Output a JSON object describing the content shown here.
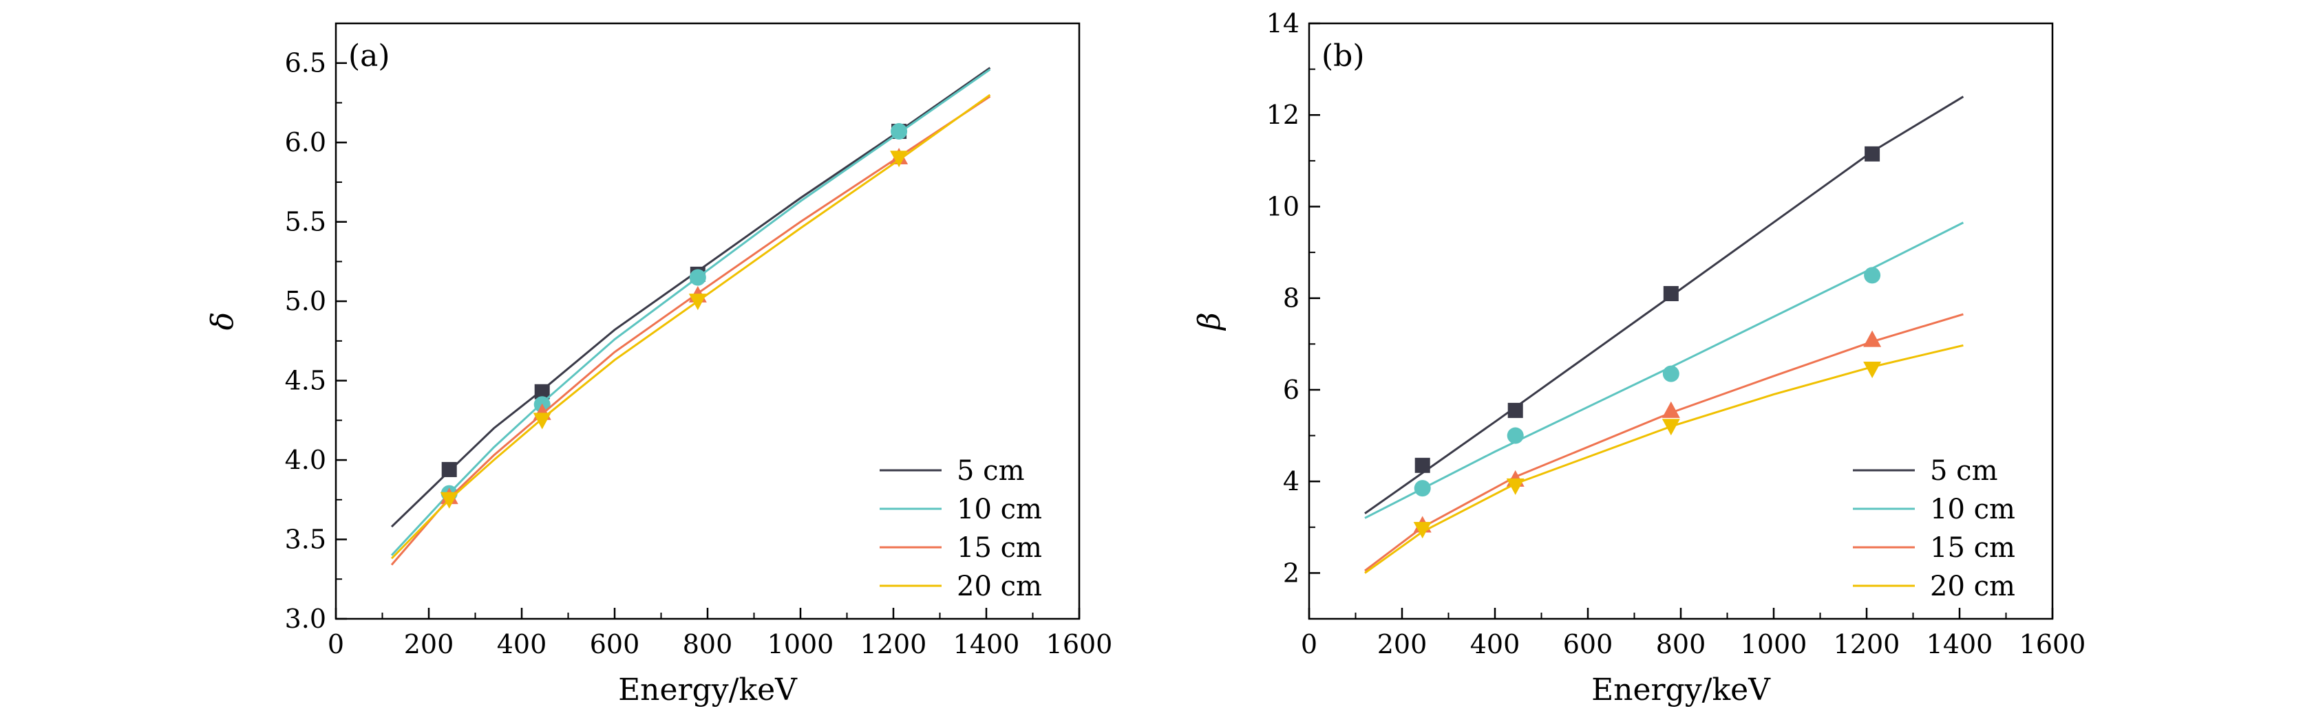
{
  "chart_data": [
    {
      "type": "line",
      "panel_label": "(a)",
      "xlabel": "Energy/keV",
      "ylabel": "δ",
      "xlim": [
        0,
        1600
      ],
      "ylim": [
        3.0,
        6.75
      ],
      "xticks": [
        0,
        200,
        400,
        600,
        800,
        1000,
        1200,
        1400,
        1600
      ],
      "yticks": [
        3.0,
        3.5,
        4.0,
        4.5,
        5.0,
        5.5,
        6.0,
        6.5
      ],
      "ytick_labels": [
        "3.0",
        "3.5",
        "4.0",
        "4.5",
        "5.0",
        "5.5",
        "6.0",
        "6.5"
      ],
      "grid": false,
      "legend_position": "lower-right",
      "series": [
        {
          "name": "5 cm",
          "color": "#3a3a48",
          "marker": "square",
          "line": [
            [
              120,
              3.58
            ],
            [
              244,
              3.93
            ],
            [
              340,
              4.2
            ],
            [
              444,
              4.44
            ],
            [
              600,
              4.82
            ],
            [
              779,
              5.19
            ],
            [
              1000,
              5.65
            ],
            [
              1212,
              6.07
            ],
            [
              1408,
              6.47
            ]
          ],
          "points": [
            [
              244,
              3.94
            ],
            [
              444,
              4.43
            ],
            [
              779,
              5.17
            ],
            [
              1212,
              6.07
            ]
          ]
        },
        {
          "name": "10 cm",
          "color": "#5cc4c0",
          "marker": "circle",
          "line": [
            [
              120,
              3.4
            ],
            [
              244,
              3.79
            ],
            [
              340,
              4.08
            ],
            [
              444,
              4.36
            ],
            [
              600,
              4.76
            ],
            [
              779,
              5.15
            ],
            [
              1000,
              5.63
            ],
            [
              1212,
              6.06
            ],
            [
              1408,
              6.46
            ]
          ],
          "points": [
            [
              244,
              3.79
            ],
            [
              444,
              4.35
            ],
            [
              779,
              5.15
            ],
            [
              1212,
              6.07
            ]
          ]
        },
        {
          "name": "15 cm",
          "color": "#ef7350",
          "marker": "triangle-up",
          "line": [
            [
              120,
              3.34
            ],
            [
              244,
              3.76
            ],
            [
              340,
              4.03
            ],
            [
              444,
              4.29
            ],
            [
              600,
              4.68
            ],
            [
              779,
              5.05
            ],
            [
              1000,
              5.5
            ],
            [
              1212,
              5.91
            ],
            [
              1408,
              6.29
            ]
          ],
          "points": [
            [
              244,
              3.77
            ],
            [
              444,
              4.3
            ],
            [
              779,
              5.04
            ],
            [
              1212,
              5.91
            ]
          ]
        },
        {
          "name": "20 cm",
          "color": "#f0c000",
          "marker": "triangle-down",
          "line": [
            [
              120,
              3.38
            ],
            [
              244,
              3.75
            ],
            [
              340,
              4.0
            ],
            [
              444,
              4.26
            ],
            [
              600,
              4.63
            ],
            [
              779,
              5.0
            ],
            [
              1000,
              5.46
            ],
            [
              1212,
              5.89
            ],
            [
              1408,
              6.3
            ]
          ],
          "points": [
            [
              244,
              3.75
            ],
            [
              444,
              4.25
            ],
            [
              779,
              5.0
            ],
            [
              1212,
              5.9
            ]
          ]
        }
      ]
    },
    {
      "type": "line",
      "panel_label": "(b)",
      "xlabel": "Energy/keV",
      "ylabel": "β",
      "xlim": [
        0,
        1600
      ],
      "ylim": [
        1.0,
        14.0
      ],
      "xticks": [
        0,
        200,
        400,
        600,
        800,
        1000,
        1200,
        1400,
        1600
      ],
      "yticks": [
        2,
        4,
        6,
        8,
        10,
        12,
        14
      ],
      "ytick_labels": [
        "2",
        "4",
        "6",
        "8",
        "10",
        "12",
        "14"
      ],
      "grid": false,
      "legend_position": "lower-right",
      "series": [
        {
          "name": "5 cm",
          "color": "#3a3a48",
          "marker": "square",
          "line": [
            [
              120,
              3.3
            ],
            [
              400,
              5.3
            ],
            [
              800,
              8.2
            ],
            [
              1212,
              11.2
            ],
            [
              1408,
              12.4
            ]
          ],
          "points": [
            [
              244,
              4.35
            ],
            [
              444,
              5.55
            ],
            [
              779,
              8.1
            ],
            [
              1212,
              11.15
            ]
          ]
        },
        {
          "name": "10 cm",
          "color": "#5cc4c0",
          "marker": "circle",
          "line": [
            [
              120,
              3.2
            ],
            [
              400,
              4.65
            ],
            [
              800,
              6.6
            ],
            [
              1212,
              8.65
            ],
            [
              1408,
              9.65
            ]
          ],
          "points": [
            [
              244,
              3.85
            ],
            [
              444,
              5.0
            ],
            [
              779,
              6.35
            ],
            [
              1212,
              8.5
            ]
          ]
        },
        {
          "name": "15 cm",
          "color": "#ef7350",
          "marker": "triangle-up",
          "line": [
            [
              120,
              2.05
            ],
            [
              244,
              3.0
            ],
            [
              444,
              4.1
            ],
            [
              779,
              5.5
            ],
            [
              1000,
              6.3
            ],
            [
              1212,
              7.05
            ],
            [
              1408,
              7.65
            ]
          ],
          "points": [
            [
              244,
              3.05
            ],
            [
              444,
              4.05
            ],
            [
              779,
              5.55
            ],
            [
              1212,
              7.1
            ]
          ]
        },
        {
          "name": "20 cm",
          "color": "#f0c000",
          "marker": "triangle-down",
          "line": [
            [
              120,
              2.0
            ],
            [
              244,
              2.9
            ],
            [
              444,
              3.95
            ],
            [
              779,
              5.2
            ],
            [
              1000,
              5.9
            ],
            [
              1212,
              6.5
            ],
            [
              1408,
              6.97
            ]
          ],
          "points": [
            [
              244,
              2.95
            ],
            [
              444,
              3.9
            ],
            [
              779,
              5.2
            ],
            [
              1212,
              6.45
            ]
          ]
        }
      ]
    }
  ]
}
